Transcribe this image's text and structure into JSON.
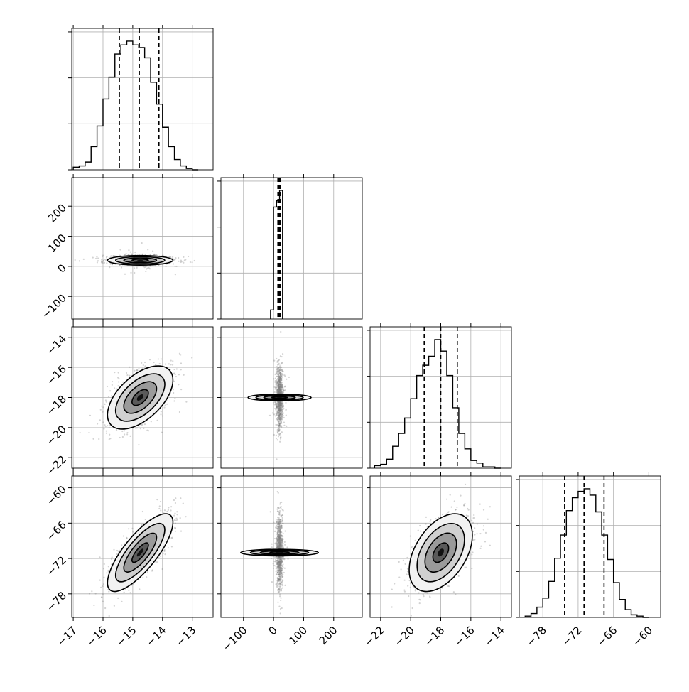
{
  "chart_data": {
    "type": "corner",
    "title": "",
    "parameters": [
      {
        "ticks": [
          -17,
          -16,
          -15,
          -14,
          -13
        ],
        "tick_labels": [
          "−17",
          "−16",
          "−15",
          "−14",
          "−13"
        ],
        "range": [
          -17.05,
          -12.3
        ],
        "quantiles": [
          -15.45,
          -14.78,
          -14.12
        ]
      },
      {
        "ticks": [
          -100,
          0,
          100,
          200
        ],
        "tick_labels": [
          "−100",
          "0",
          "100",
          "200"
        ],
        "range": [
          -175,
          295
        ],
        "quantiles": [
          14.5,
          18,
          21.5
        ]
      },
      {
        "ticks": [
          -22,
          -20,
          -18,
          -16,
          -14
        ],
        "tick_labels": [
          "−22",
          "−20",
          "−18",
          "−16",
          "−14"
        ],
        "range": [
          -22.7,
          -13.3
        ],
        "quantiles": [
          -19.1,
          -18.0,
          -16.9
        ]
      },
      {
        "ticks": [
          -78,
          -72,
          -66,
          -60
        ],
        "tick_labels": [
          "−78",
          "−72",
          "−66",
          "−60"
        ],
        "range": [
          -82,
          -58
        ],
        "quantiles": [
          -74.3,
          -71.0,
          -67.6
        ]
      }
    ],
    "histograms": [
      {
        "bins": [
          -17.0,
          -16.8,
          -16.6,
          -16.4,
          -16.2,
          -16.0,
          -15.8,
          -15.6,
          -15.4,
          -15.2,
          -15.0,
          -14.8,
          -14.6,
          -14.4,
          -14.2,
          -14.0,
          -13.8,
          -13.6,
          -13.4,
          -13.2,
          -13.0,
          -12.8
        ],
        "counts": [
          0.02,
          0.03,
          0.06,
          0.18,
          0.34,
          0.55,
          0.72,
          0.9,
          0.97,
          1.0,
          0.97,
          0.95,
          0.87,
          0.68,
          0.51,
          0.33,
          0.18,
          0.08,
          0.03,
          0.01,
          0
        ]
      },
      {
        "bins": [
          -10,
          0,
          10,
          20,
          30
        ],
        "counts": [
          0.07,
          0.87,
          0.92,
          1.0
        ]
      },
      {
        "bins": [
          -22.4,
          -22.0,
          -21.6,
          -21.2,
          -20.8,
          -20.4,
          -20.0,
          -19.6,
          -19.2,
          -18.8,
          -18.4,
          -18.0,
          -17.6,
          -17.2,
          -16.8,
          -16.4,
          -16.0,
          -15.6,
          -15.2,
          -14.8,
          -14.4,
          -14.0
        ],
        "counts": [
          0.02,
          0.03,
          0.07,
          0.17,
          0.27,
          0.39,
          0.54,
          0.72,
          0.8,
          0.87,
          1.0,
          0.91,
          0.72,
          0.47,
          0.27,
          0.15,
          0.06,
          0.04,
          0.01,
          0.01,
          0
        ]
      },
      {
        "bins": [
          -81,
          -80,
          -79,
          -78,
          -77,
          -76,
          -75,
          -74,
          -73,
          -72,
          -71,
          -70,
          -69,
          -68,
          -67,
          -66,
          -65,
          -64,
          -63,
          -62,
          -61,
          -60
        ],
        "counts": [
          0.01,
          0.03,
          0.08,
          0.15,
          0.28,
          0.46,
          0.64,
          0.83,
          0.93,
          0.98,
          1.0,
          0.95,
          0.82,
          0.64,
          0.45,
          0.27,
          0.14,
          0.06,
          0.02,
          0.01,
          0
        ]
      }
    ],
    "pairs": [
      {
        "row": 1,
        "col": 0,
        "mean": [
          -14.75,
          20
        ],
        "sd": [
          0.55,
          8
        ],
        "corr": 0.0
      },
      {
        "row": 2,
        "col": 0,
        "mean": [
          -14.75,
          -18.0
        ],
        "sd": [
          0.55,
          1.05
        ],
        "corr": 0.55
      },
      {
        "row": 2,
        "col": 1,
        "mean": [
          20,
          -18.0
        ],
        "sd": [
          5.5,
          1.05
        ],
        "corr": 0.0
      },
      {
        "row": 3,
        "col": 0,
        "mean": [
          -14.75,
          -71.0
        ],
        "sd": [
          0.55,
          3.3
        ],
        "corr": 0.78
      },
      {
        "row": 3,
        "col": 1,
        "mean": [
          20,
          -71.0
        ],
        "sd": [
          5.5,
          3.3
        ],
        "corr": 0.0
      },
      {
        "row": 3,
        "col": 2,
        "mean": [
          -18.0,
          -71.0
        ],
        "sd": [
          1.05,
          3.3
        ],
        "corr": 0.45
      }
    ],
    "contour_levels_sigma": [
      0.5,
      1.0,
      1.5,
      2.0
    ],
    "grid": true,
    "colors": {
      "line": "#000000",
      "grid": "#b0b0b0",
      "points": "#808080"
    }
  }
}
